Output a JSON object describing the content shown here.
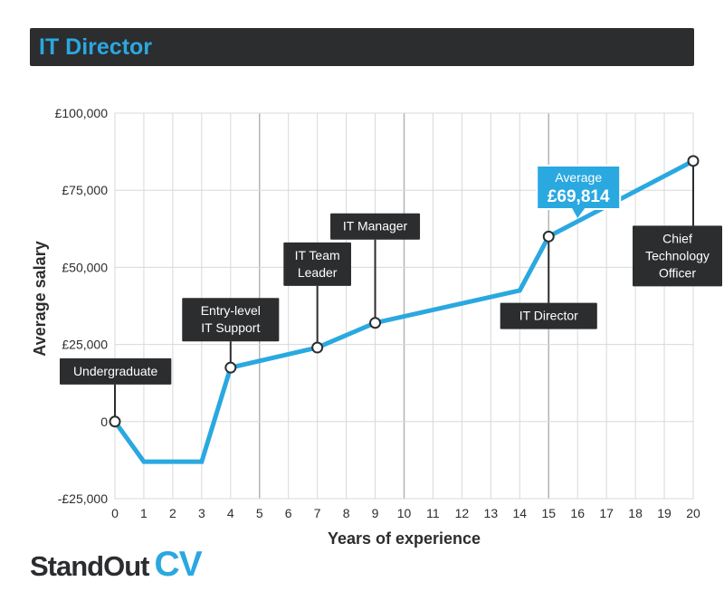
{
  "title": "IT Director",
  "brand": {
    "part1": "StandOut",
    "part2": "CV"
  },
  "colors": {
    "accent": "#2aa8e0",
    "dark": "#2c2d2f",
    "grid": "#d8d8d8",
    "grid_major": "#b5b5b5"
  },
  "chart_data": {
    "type": "line",
    "xlabel": "Years of experience",
    "ylabel": "Average salary",
    "xlim": [
      0,
      20
    ],
    "ylim": [
      -25000,
      100000
    ],
    "x_ticks": [
      0,
      1,
      2,
      3,
      4,
      5,
      6,
      7,
      8,
      9,
      10,
      11,
      12,
      13,
      14,
      15,
      16,
      17,
      18,
      19,
      20
    ],
    "major_x_grid": [
      5,
      10,
      15
    ],
    "y_ticks": [
      {
        "value": -25000,
        "label": "-£25,000"
      },
      {
        "value": 0,
        "label": "0"
      },
      {
        "value": 25000,
        "label": "£25,000"
      },
      {
        "value": 50000,
        "label": "£50,000"
      },
      {
        "value": 75000,
        "label": "£75,000"
      },
      {
        "value": 100000,
        "label": "£100,000"
      }
    ],
    "grid": true,
    "series": [
      {
        "points": [
          {
            "x": 0,
            "y": 0
          },
          {
            "x": 1,
            "y": -13000
          },
          {
            "x": 3,
            "y": -13000
          },
          {
            "x": 4,
            "y": 17500
          },
          {
            "x": 7,
            "y": 24000
          },
          {
            "x": 9,
            "y": 32000
          },
          {
            "x": 14,
            "y": 42500
          },
          {
            "x": 15,
            "y": 60000
          },
          {
            "x": 20,
            "y": 84500
          }
        ]
      }
    ],
    "milestones": [
      {
        "x": 0,
        "y": 0,
        "label": [
          "Undergraduate"
        ],
        "dir": "up",
        "tip": 12000
      },
      {
        "x": 4,
        "y": 17500,
        "label": [
          "Entry-level",
          "IT Support"
        ],
        "dir": "up",
        "tip": 26000
      },
      {
        "x": 7,
        "y": 24000,
        "label": [
          "IT Team",
          "Leader"
        ],
        "dir": "up",
        "tip": 44000
      },
      {
        "x": 9,
        "y": 32000,
        "label": [
          "IT Manager"
        ],
        "dir": "up",
        "tip": 59000
      },
      {
        "x": 15,
        "y": 60000,
        "label": [
          "IT Director"
        ],
        "dir": "down",
        "tip": 38500
      },
      {
        "x": 20,
        "y": 84500,
        "label": [
          "Chief",
          "Technology",
          "Officer"
        ],
        "dir": "down",
        "tip": 63500
      }
    ],
    "average_callout": {
      "label": "Average",
      "value": "£69,814",
      "pointer_x": 16,
      "pointer_y": 69814
    }
  }
}
